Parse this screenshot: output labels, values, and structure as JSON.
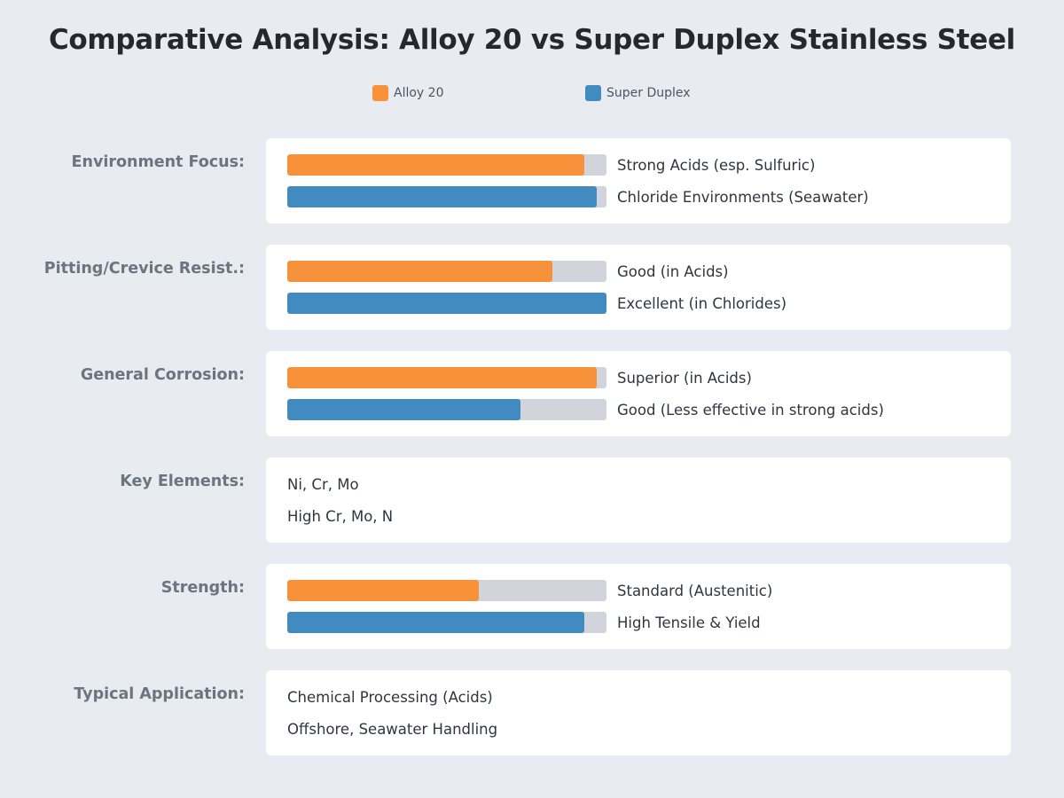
{
  "chart_data": {
    "type": "bar",
    "title": "Comparative Analysis: Alloy 20 vs Super Duplex Stainless Steel",
    "legend_placement": "top-center",
    "series": [
      {
        "name": "Alloy 20",
        "color": "#f7923a"
      },
      {
        "name": "Super Duplex",
        "color": "#428bc1"
      }
    ],
    "rows": [
      {
        "label": "Environment Focus:",
        "kind": "bars",
        "entries": [
          {
            "series": "Alloy 20",
            "value": 0.93,
            "text": "Strong Acids (esp. Sulfuric)"
          },
          {
            "series": "Super Duplex",
            "value": 0.97,
            "text": "Chloride Environments (Seawater)"
          }
        ]
      },
      {
        "label": "Pitting/Crevice Resist.:",
        "kind": "bars",
        "entries": [
          {
            "series": "Alloy 20",
            "value": 0.83,
            "text": "Good (in Acids)"
          },
          {
            "series": "Super Duplex",
            "value": 1.0,
            "text": "Excellent (in Chlorides)"
          }
        ]
      },
      {
        "label": "General Corrosion:",
        "kind": "bars",
        "entries": [
          {
            "series": "Alloy 20",
            "value": 0.97,
            "text": "Superior (in Acids)"
          },
          {
            "series": "Super Duplex",
            "value": 0.73,
            "text": "Good (Less effective in strong acids)"
          }
        ]
      },
      {
        "label": "Key Elements:",
        "kind": "text",
        "entries": [
          {
            "series": "Alloy 20",
            "text": "Ni, Cr, Mo"
          },
          {
            "series": "Super Duplex",
            "text": "High Cr, Mo, N"
          }
        ]
      },
      {
        "label": "Strength:",
        "kind": "bars",
        "entries": [
          {
            "series": "Alloy 20",
            "value": 0.6,
            "text": "Standard (Austenitic)"
          },
          {
            "series": "Super Duplex",
            "value": 0.93,
            "text": "High Tensile & Yield"
          }
        ]
      },
      {
        "label": "Typical Application:",
        "kind": "text",
        "entries": [
          {
            "series": "Alloy 20",
            "text": "Chemical Processing (Acids)"
          },
          {
            "series": "Super Duplex",
            "text": "Offshore, Seawater Handling"
          }
        ]
      }
    ]
  }
}
